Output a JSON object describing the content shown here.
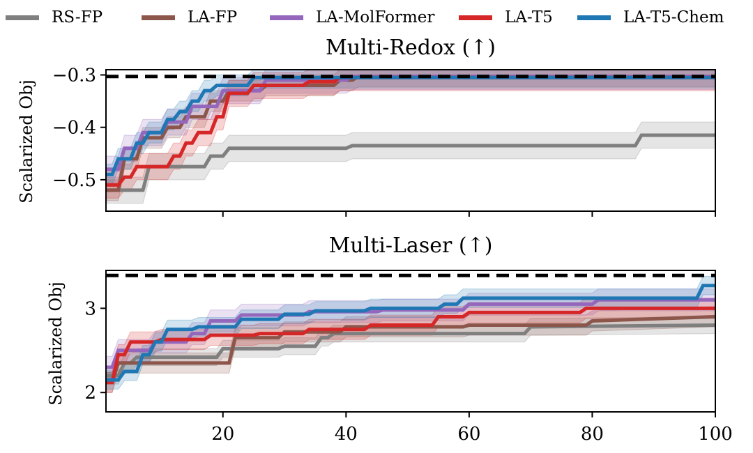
{
  "legend": {
    "entries": [
      {
        "label": "RS-FP",
        "color": "#7f7f7f"
      },
      {
        "label": "LA-FP",
        "color": "#8c564b"
      },
      {
        "label": "LA-MolFormer",
        "color": "#9467bd"
      },
      {
        "label": "LA-T5",
        "color": "#d62728"
      },
      {
        "label": "LA-T5-Chem",
        "color": "#1f77b4"
      }
    ]
  },
  "chart_data": [
    {
      "type": "line",
      "title": "Multi-Redox (↑)",
      "xlabel": "",
      "ylabel": "Scalarized Obj",
      "xlim": [
        1,
        100
      ],
      "ylim": [
        -0.56,
        -0.29
      ],
      "xticks": [
        20,
        40,
        60,
        80,
        100
      ],
      "xtick_labels_shown": false,
      "yticks": [
        -0.5,
        -0.4,
        -0.3
      ],
      "ytick_labels": [
        "−0.5",
        "−0.4",
        "−0.3"
      ],
      "reference_line": {
        "y": -0.303,
        "style": "dashed",
        "color": "#000000"
      },
      "grid": false,
      "series": [
        {
          "name": "RS-FP",
          "color": "#7f7f7f",
          "band": 0.025,
          "points": [
            [
              1,
              -0.52
            ],
            [
              7,
              -0.52
            ],
            [
              8,
              -0.475
            ],
            [
              17,
              -0.475
            ],
            [
              18,
              -0.455
            ],
            [
              20,
              -0.455
            ],
            [
              21,
              -0.44
            ],
            [
              40,
              -0.44
            ],
            [
              41,
              -0.435
            ],
            [
              87,
              -0.435
            ],
            [
              88,
              -0.415
            ],
            [
              100,
              -0.415
            ]
          ]
        },
        {
          "name": "LA-FP",
          "color": "#8c564b",
          "band": 0.02,
          "points": [
            [
              1,
              -0.52
            ],
            [
              3,
              -0.52
            ],
            [
              4,
              -0.46
            ],
            [
              6,
              -0.46
            ],
            [
              7,
              -0.42
            ],
            [
              10,
              -0.42
            ],
            [
              11,
              -0.4
            ],
            [
              13,
              -0.4
            ],
            [
              14,
              -0.38
            ],
            [
              17,
              -0.38
            ],
            [
              18,
              -0.35
            ],
            [
              20,
              -0.35
            ],
            [
              21,
              -0.33
            ],
            [
              26,
              -0.33
            ],
            [
              27,
              -0.32
            ],
            [
              38,
              -0.32
            ],
            [
              39,
              -0.31
            ],
            [
              41,
              -0.31
            ],
            [
              42,
              -0.303
            ],
            [
              100,
              -0.303
            ]
          ]
        },
        {
          "name": "LA-MolFormer",
          "color": "#9467bd",
          "band": 0.025,
          "points": [
            [
              1,
              -0.48
            ],
            [
              3,
              -0.48
            ],
            [
              4,
              -0.44
            ],
            [
              6,
              -0.44
            ],
            [
              7,
              -0.41
            ],
            [
              10,
              -0.41
            ],
            [
              11,
              -0.39
            ],
            [
              14,
              -0.39
            ],
            [
              15,
              -0.36
            ],
            [
              19,
              -0.36
            ],
            [
              20,
              -0.33
            ],
            [
              26,
              -0.33
            ],
            [
              27,
              -0.31
            ],
            [
              40,
              -0.31
            ],
            [
              41,
              -0.303
            ],
            [
              100,
              -0.303
            ]
          ]
        },
        {
          "name": "LA-T5",
          "color": "#d62728",
          "band": 0.025,
          "points": [
            [
              1,
              -0.51
            ],
            [
              3,
              -0.51
            ],
            [
              4,
              -0.495
            ],
            [
              5,
              -0.495
            ],
            [
              6,
              -0.475
            ],
            [
              11,
              -0.475
            ],
            [
              12,
              -0.455
            ],
            [
              13,
              -0.455
            ],
            [
              14,
              -0.43
            ],
            [
              15,
              -0.43
            ],
            [
              16,
              -0.41
            ],
            [
              18,
              -0.41
            ],
            [
              19,
              -0.38
            ],
            [
              20,
              -0.38
            ],
            [
              21,
              -0.335
            ],
            [
              24,
              -0.335
            ],
            [
              25,
              -0.32
            ],
            [
              33,
              -0.32
            ],
            [
              34,
              -0.313
            ],
            [
              38,
              -0.313
            ],
            [
              39,
              -0.305
            ],
            [
              100,
              -0.305
            ]
          ]
        },
        {
          "name": "LA-T5-Chem",
          "color": "#1f77b4",
          "band": 0.02,
          "points": [
            [
              1,
              -0.49
            ],
            [
              2,
              -0.49
            ],
            [
              3,
              -0.46
            ],
            [
              5,
              -0.46
            ],
            [
              6,
              -0.43
            ],
            [
              7,
              -0.43
            ],
            [
              8,
              -0.41
            ],
            [
              10,
              -0.41
            ],
            [
              11,
              -0.385
            ],
            [
              12,
              -0.385
            ],
            [
              13,
              -0.37
            ],
            [
              14,
              -0.37
            ],
            [
              15,
              -0.35
            ],
            [
              16,
              -0.35
            ],
            [
              17,
              -0.33
            ],
            [
              18,
              -0.33
            ],
            [
              19,
              -0.32
            ],
            [
              24,
              -0.32
            ],
            [
              25,
              -0.305
            ],
            [
              100,
              -0.305
            ]
          ]
        }
      ]
    },
    {
      "type": "line",
      "title": "Multi-Laser (↑)",
      "xlabel": "",
      "ylabel": "Scalarized Obj",
      "xlim": [
        1,
        100
      ],
      "ylim": [
        1.77,
        3.45
      ],
      "xticks": [
        20,
        40,
        60,
        80,
        100
      ],
      "xtick_labels": [
        "20",
        "40",
        "60",
        "80",
        "100"
      ],
      "yticks": [
        2,
        3
      ],
      "ytick_labels": [
        "2",
        "3"
      ],
      "reference_line": {
        "y": 3.39,
        "style": "dashed",
        "color": "#000000"
      },
      "grid": false,
      "series": [
        {
          "name": "RS-FP",
          "color": "#7f7f7f",
          "band": 0.1,
          "points": [
            [
              1,
              2.2
            ],
            [
              3,
              2.2
            ],
            [
              4,
              2.35
            ],
            [
              5,
              2.35
            ],
            [
              6,
              2.42
            ],
            [
              19,
              2.42
            ],
            [
              20,
              2.52
            ],
            [
              29,
              2.52
            ],
            [
              30,
              2.55
            ],
            [
              35,
              2.55
            ],
            [
              36,
              2.65
            ],
            [
              37,
              2.65
            ],
            [
              38,
              2.7
            ],
            [
              69,
              2.7
            ],
            [
              70,
              2.78
            ],
            [
              100,
              2.8
            ]
          ]
        },
        {
          "name": "LA-FP",
          "color": "#8c564b",
          "band": 0.12,
          "points": [
            [
              1,
              2.12
            ],
            [
              2,
              2.12
            ],
            [
              3,
              2.35
            ],
            [
              21,
              2.35
            ],
            [
              22,
              2.65
            ],
            [
              29,
              2.65
            ],
            [
              30,
              2.72
            ],
            [
              39,
              2.72
            ],
            [
              40,
              2.78
            ],
            [
              59,
              2.78
            ],
            [
              60,
              2.8
            ],
            [
              79,
              2.8
            ],
            [
              80,
              2.85
            ],
            [
              100,
              2.9
            ]
          ]
        },
        {
          "name": "LA-MolFormer",
          "color": "#9467bd",
          "band": 0.13,
          "points": [
            [
              1,
              2.3
            ],
            [
              2,
              2.3
            ],
            [
              3,
              2.5
            ],
            [
              8,
              2.5
            ],
            [
              9,
              2.6
            ],
            [
              14,
              2.6
            ],
            [
              15,
              2.7
            ],
            [
              17,
              2.7
            ],
            [
              18,
              2.85
            ],
            [
              22,
              2.85
            ],
            [
              23,
              2.92
            ],
            [
              33,
              2.92
            ],
            [
              34,
              2.96
            ],
            [
              45,
              2.96
            ],
            [
              46,
              2.98
            ],
            [
              59,
              2.98
            ],
            [
              60,
              3.05
            ],
            [
              80,
              3.05
            ],
            [
              81,
              3.1
            ],
            [
              100,
              3.1
            ]
          ]
        },
        {
          "name": "LA-T5",
          "color": "#d62728",
          "band": 0.12,
          "points": [
            [
              1,
              2.12
            ],
            [
              2,
              2.12
            ],
            [
              3,
              2.45
            ],
            [
              4,
              2.45
            ],
            [
              5,
              2.6
            ],
            [
              9,
              2.6
            ],
            [
              10,
              2.63
            ],
            [
              17,
              2.63
            ],
            [
              18,
              2.68
            ],
            [
              25,
              2.68
            ],
            [
              26,
              2.7
            ],
            [
              33,
              2.7
            ],
            [
              34,
              2.75
            ],
            [
              43,
              2.75
            ],
            [
              44,
              2.8
            ],
            [
              54,
              2.8
            ],
            [
              55,
              2.9
            ],
            [
              59,
              2.9
            ],
            [
              60,
              2.95
            ],
            [
              78,
              2.95
            ],
            [
              79,
              3.0
            ],
            [
              100,
              3.0
            ]
          ]
        },
        {
          "name": "LA-T5-Chem",
          "color": "#1f77b4",
          "band": 0.11,
          "points": [
            [
              1,
              2.15
            ],
            [
              3,
              2.15
            ],
            [
              4,
              2.25
            ],
            [
              6,
              2.25
            ],
            [
              7,
              2.45
            ],
            [
              8,
              2.45
            ],
            [
              9,
              2.6
            ],
            [
              10,
              2.6
            ],
            [
              11,
              2.75
            ],
            [
              15,
              2.75
            ],
            [
              16,
              2.78
            ],
            [
              22,
              2.78
            ],
            [
              23,
              2.87
            ],
            [
              29,
              2.87
            ],
            [
              30,
              2.93
            ],
            [
              34,
              2.93
            ],
            [
              35,
              2.97
            ],
            [
              43,
              2.97
            ],
            [
              44,
              3.0
            ],
            [
              55,
              3.0
            ],
            [
              56,
              3.05
            ],
            [
              58,
              3.05
            ],
            [
              59,
              3.12
            ],
            [
              97,
              3.12
            ],
            [
              98,
              3.27
            ],
            [
              100,
              3.27
            ]
          ]
        }
      ]
    }
  ]
}
